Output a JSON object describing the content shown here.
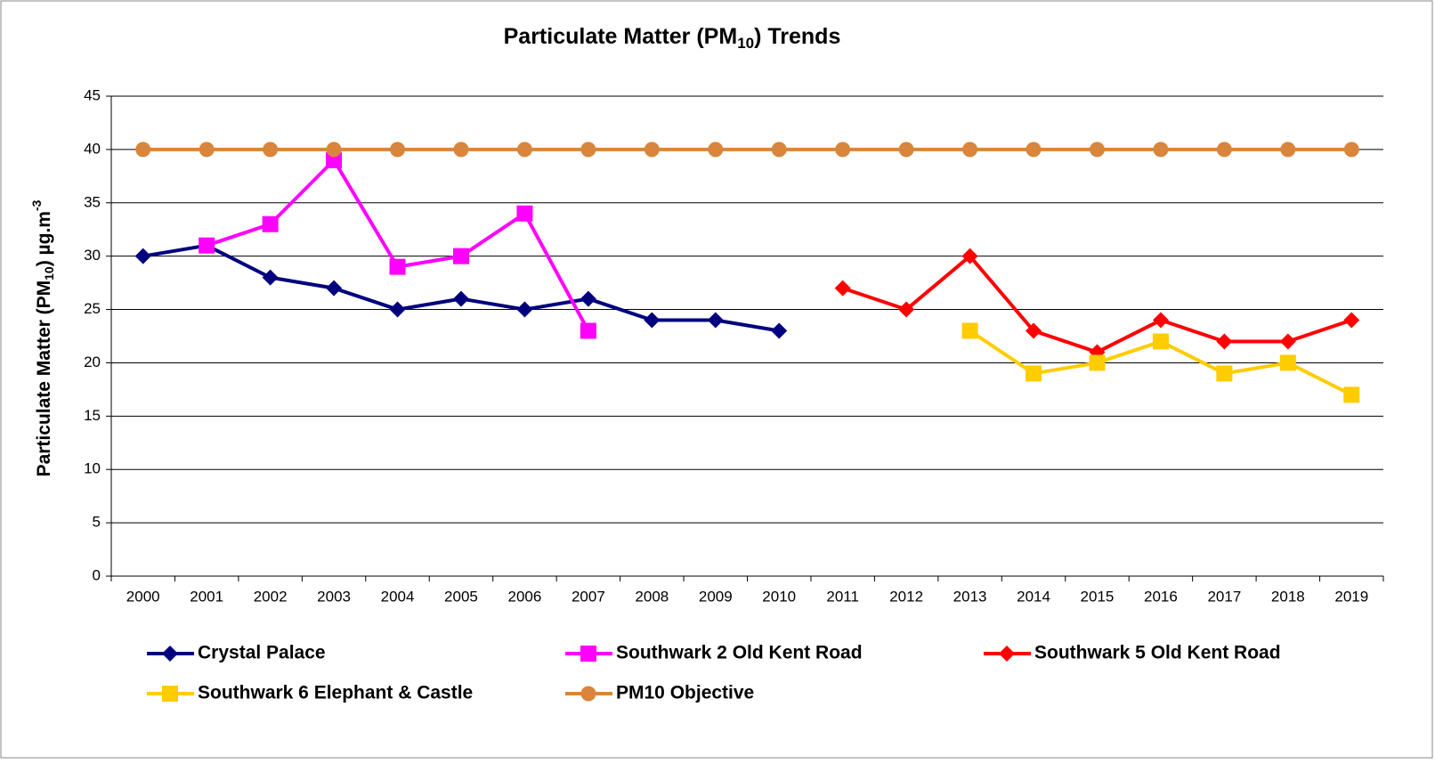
{
  "chart_data": {
    "type": "line",
    "title": [
      "Particulate Matter (PM",
      "10",
      ") Trends"
    ],
    "y_label": [
      "Particulate Matter (PM",
      "10",
      ") µg.m",
      "-3"
    ],
    "categories": [
      "2000",
      "2001",
      "2002",
      "2003",
      "2004",
      "2005",
      "2006",
      "2007",
      "2008",
      "2009",
      "2010",
      "2011",
      "2012",
      "2013",
      "2014",
      "2015",
      "2016",
      "2017",
      "2018",
      "2019"
    ],
    "ylim": [
      0,
      45
    ],
    "yticks": [
      0,
      5,
      10,
      15,
      20,
      25,
      30,
      35,
      40,
      45
    ],
    "grid": true,
    "legend": "bottom",
    "series": [
      {
        "name": "Crystal Palace",
        "color": "#00007f",
        "marker": "diamond",
        "values": [
          30,
          31,
          28,
          27,
          25,
          26,
          25,
          26,
          24,
          24,
          23,
          null,
          null,
          null,
          null,
          null,
          null,
          null,
          null,
          null
        ]
      },
      {
        "name": "Southwark 2 Old Kent Road",
        "color": "#ff00ff",
        "marker": "square",
        "values": [
          null,
          31,
          33,
          39,
          29,
          30,
          34,
          23,
          null,
          null,
          null,
          null,
          null,
          null,
          null,
          null,
          null,
          null,
          null,
          null
        ]
      },
      {
        "name": "Southwark 5 Old Kent Road",
        "color": "#ff0000",
        "marker": "diamond",
        "values": [
          null,
          null,
          null,
          null,
          null,
          null,
          null,
          null,
          null,
          null,
          null,
          27,
          25,
          30,
          23,
          21,
          24,
          22,
          22,
          24
        ]
      },
      {
        "name": "Southwark 6 Elephant & Castle",
        "color": "#ffcc00",
        "marker": "square",
        "values": [
          null,
          null,
          null,
          null,
          null,
          null,
          null,
          null,
          null,
          null,
          null,
          null,
          null,
          23,
          19,
          20,
          22,
          19,
          20,
          17
        ]
      },
      {
        "name": "PM10 Objective",
        "color": "#d9853b",
        "marker": "circle",
        "values": [
          40,
          40,
          40,
          40,
          40,
          40,
          40,
          40,
          40,
          40,
          40,
          40,
          40,
          40,
          40,
          40,
          40,
          40,
          40,
          40
        ]
      }
    ]
  }
}
